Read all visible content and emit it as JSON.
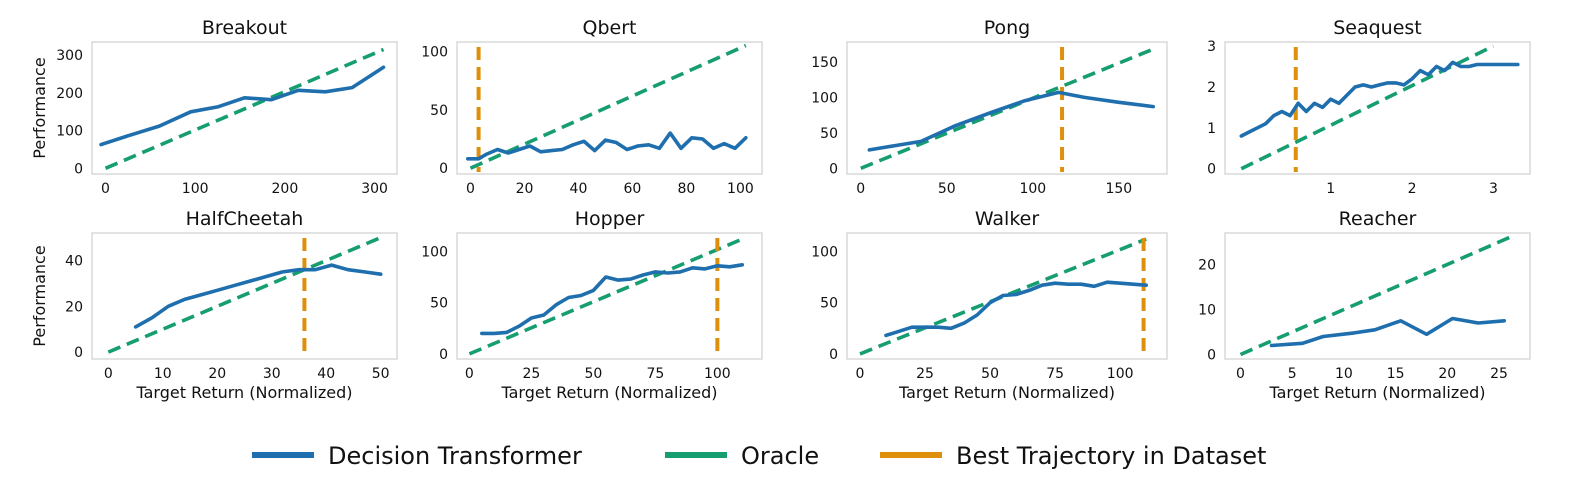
{
  "legend": [
    {
      "label": "Decision Transformer",
      "color": "#1f6fae",
      "dash": false
    },
    {
      "label": "Oracle",
      "color": "#169e70",
      "dash": false
    },
    {
      "label": "Best Trajectory in Dataset",
      "color": "#de8f0c",
      "dash": false
    }
  ],
  "colors": {
    "dt": "#1f6fae",
    "oracle": "#169e70",
    "best": "#de8f0c",
    "frame": "#cfcfcf"
  },
  "chart_data": [
    {
      "type": "line",
      "title": "Breakout",
      "ylabel": "Performance",
      "xlabel": "",
      "xlim": [
        -15,
        325
      ],
      "ylim": [
        -15,
        335
      ],
      "xticks": [
        0,
        100,
        200,
        300
      ],
      "yticks": [
        0,
        100,
        200,
        300
      ],
      "series": [
        {
          "name": "Decision Transformer",
          "x": [
            -5,
            30,
            60,
            95,
            125,
            155,
            185,
            215,
            245,
            275,
            310
          ],
          "y": [
            63,
            90,
            112,
            150,
            163,
            187,
            182,
            207,
            203,
            214,
            268
          ]
        },
        {
          "name": "Oracle",
          "x": [
            0,
            310
          ],
          "y": [
            0,
            315
          ]
        }
      ],
      "best_trajectory": null
    },
    {
      "type": "line",
      "title": "Qbert",
      "ylabel": "",
      "xlabel": "",
      "xlim": [
        -5,
        108
      ],
      "ylim": [
        -5,
        108
      ],
      "xticks": [
        0,
        20,
        40,
        60,
        80,
        100
      ],
      "yticks": [
        0,
        50,
        100
      ],
      "series": [
        {
          "name": "Decision Transformer",
          "x": [
            -1,
            3,
            6,
            10,
            14,
            18,
            22,
            26,
            30,
            34,
            38,
            42,
            46,
            50,
            54,
            58,
            62,
            66,
            70,
            74,
            78,
            82,
            86,
            90,
            94,
            98,
            102
          ],
          "y": [
            8,
            8,
            12,
            16,
            13,
            16,
            19,
            14,
            15,
            16,
            20,
            23,
            15,
            24,
            22,
            16,
            19,
            20,
            17,
            30,
            17,
            26,
            25,
            17,
            21,
            17,
            26
          ]
        },
        {
          "name": "Oracle",
          "x": [
            0,
            102
          ],
          "y": [
            0,
            105
          ]
        }
      ],
      "best_trajectory": 3
    },
    {
      "type": "line",
      "title": "Pong",
      "ylabel": "",
      "xlabel": "",
      "xlim": [
        -8,
        178
      ],
      "ylim": [
        -8,
        178
      ],
      "xticks": [
        0,
        50,
        100,
        150
      ],
      "yticks": [
        0,
        50,
        100,
        150
      ],
      "series": [
        {
          "name": "Decision Transformer",
          "x": [
            5,
            20,
            35,
            55,
            75,
            95,
            115,
            130,
            150,
            170
          ],
          "y": [
            26,
            32,
            38,
            60,
            78,
            95,
            107,
            100,
            93,
            87
          ]
        },
        {
          "name": "Oracle",
          "x": [
            0,
            172
          ],
          "y": [
            0,
            170
          ]
        }
      ],
      "best_trajectory": 117
    },
    {
      "type": "line",
      "title": "Seaquest",
      "ylabel": "",
      "xlabel": "",
      "xlim": [
        -0.3,
        3.45
      ],
      "ylim": [
        -0.13,
        3.1
      ],
      "xticks": [
        1,
        2,
        3
      ],
      "yticks": [
        0,
        1,
        2,
        3
      ],
      "series": [
        {
          "name": "Decision Transformer",
          "x": [
            -0.1,
            0.0,
            0.1,
            0.2,
            0.3,
            0.4,
            0.5,
            0.6,
            0.7,
            0.8,
            0.9,
            1.0,
            1.1,
            1.2,
            1.3,
            1.4,
            1.5,
            1.6,
            1.7,
            1.8,
            1.9,
            2.0,
            2.1,
            2.2,
            2.3,
            2.4,
            2.5,
            2.6,
            2.7,
            2.8,
            2.9,
            3.0,
            3.1,
            3.3
          ],
          "y": [
            0.8,
            0.9,
            1.0,
            1.1,
            1.3,
            1.4,
            1.3,
            1.6,
            1.4,
            1.6,
            1.5,
            1.7,
            1.6,
            1.8,
            2.0,
            2.05,
            2.0,
            2.05,
            2.1,
            2.1,
            2.05,
            2.2,
            2.4,
            2.3,
            2.5,
            2.4,
            2.6,
            2.5,
            2.5,
            2.55,
            2.55,
            2.55,
            2.55,
            2.55
          ]
        },
        {
          "name": "Oracle",
          "x": [
            -0.1,
            3.0
          ],
          "y": [
            0.0,
            3.0
          ]
        }
      ],
      "best_trajectory": 0.57
    },
    {
      "type": "line",
      "title": "HalfCheetah",
      "ylabel": "Performance",
      "xlabel": "Target Return (Normalized)",
      "xlim": [
        -3,
        53
      ],
      "ylim": [
        -3,
        52
      ],
      "xticks": [
        0,
        10,
        20,
        30,
        40,
        50
      ],
      "yticks": [
        0,
        20,
        40
      ],
      "series": [
        {
          "name": "Decision Transformer",
          "x": [
            5,
            8,
            11,
            14,
            17,
            20,
            23,
            26,
            29,
            32,
            35,
            38,
            41,
            44,
            47,
            50
          ],
          "y": [
            11,
            15,
            20,
            23,
            25,
            27,
            29,
            31,
            33,
            35,
            36,
            36,
            38,
            36,
            35,
            34
          ]
        },
        {
          "name": "Oracle",
          "x": [
            0,
            50
          ],
          "y": [
            0,
            50
          ]
        }
      ],
      "best_trajectory": 36
    },
    {
      "type": "line",
      "title": "Hopper",
      "ylabel": "",
      "xlabel": "Target Return (Normalized)",
      "xlim": [
        -5,
        118
      ],
      "ylim": [
        -5,
        118
      ],
      "xticks": [
        0,
        25,
        50,
        75,
        100
      ],
      "yticks": [
        0,
        50,
        100
      ],
      "series": [
        {
          "name": "Decision Transformer",
          "x": [
            5,
            10,
            15,
            20,
            25,
            30,
            35,
            40,
            45,
            50,
            55,
            60,
            65,
            70,
            75,
            80,
            85,
            90,
            95,
            100,
            105,
            110
          ],
          "y": [
            20,
            20,
            21,
            27,
            35,
            38,
            48,
            55,
            57,
            62,
            75,
            72,
            73,
            77,
            80,
            79,
            80,
            84,
            83,
            86,
            85,
            87
          ]
        },
        {
          "name": "Oracle",
          "x": [
            0,
            110
          ],
          "y": [
            0,
            112
          ]
        }
      ],
      "best_trajectory": 100
    },
    {
      "type": "line",
      "title": "Walker",
      "ylabel": "",
      "xlabel": "Target Return (Normalized)",
      "xlim": [
        -5,
        118
      ],
      "ylim": [
        -5,
        118
      ],
      "xticks": [
        0,
        25,
        50,
        75,
        100
      ],
      "yticks": [
        0,
        50,
        100
      ],
      "series": [
        {
          "name": "Decision Transformer",
          "x": [
            10,
            20,
            30,
            35,
            40,
            45,
            50,
            55,
            60,
            65,
            70,
            75,
            80,
            85,
            90,
            95,
            100,
            105,
            110
          ],
          "y": [
            18,
            26,
            26,
            25,
            30,
            38,
            50,
            57,
            58,
            62,
            67,
            69,
            68,
            68,
            66,
            70,
            69,
            68,
            67
          ]
        },
        {
          "name": "Oracle",
          "x": [
            0,
            110
          ],
          "y": [
            0,
            112
          ]
        }
      ],
      "best_trajectory": 109
    },
    {
      "type": "line",
      "title": "Reacher",
      "ylabel": "",
      "xlabel": "Target Return (Normalized)",
      "xlim": [
        -1.5,
        28
      ],
      "ylim": [
        -1,
        27
      ],
      "xticks": [
        0,
        5,
        10,
        15,
        20,
        25
      ],
      "yticks": [
        0,
        10,
        20
      ],
      "series": [
        {
          "name": "Decision Transformer",
          "x": [
            3,
            6,
            8,
            11,
            13,
            15.5,
            18,
            20.5,
            23,
            25.5
          ],
          "y": [
            2,
            2.5,
            4,
            4.8,
            5.5,
            7.5,
            4.5,
            8,
            7,
            7.5
          ]
        },
        {
          "name": "Oracle",
          "x": [
            0,
            26
          ],
          "y": [
            0,
            26
          ]
        }
      ],
      "best_trajectory": null
    }
  ]
}
